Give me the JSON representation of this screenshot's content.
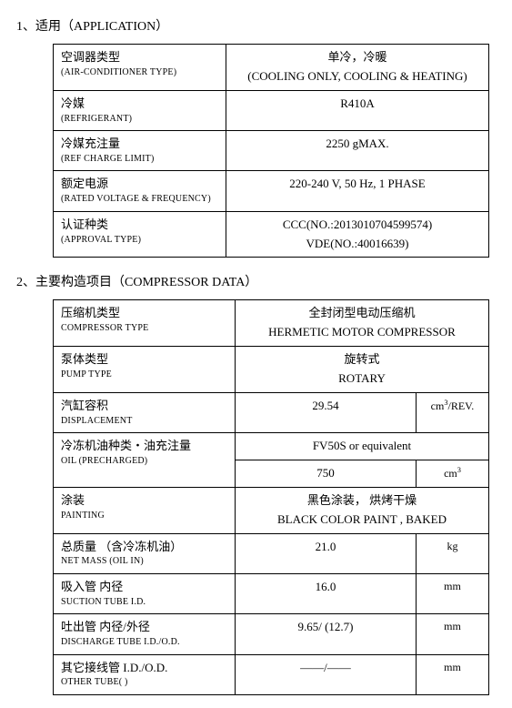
{
  "section1": {
    "title": "1、适用（APPLICATION）",
    "rows": [
      {
        "label_cn": "空调器类型",
        "label_en": "(AIR-CONDITIONER TYPE)",
        "val_cn": "单冷，冷暖",
        "val_en": "(COOLING ONLY,  COOLING & HEATING)"
      },
      {
        "label_cn": "冷媒",
        "label_en": "(REFRIGERANT)",
        "val": "R410A"
      },
      {
        "label_cn": "冷媒充注量",
        "label_en": "(REF CHARGE LIMIT)",
        "val": "2250     gMAX."
      },
      {
        "label_cn": "额定电源",
        "label_en": "(RATED VOLTAGE & FREQUENCY)",
        "val": "220-240 V,  50 Hz,  1 PHASE"
      },
      {
        "label_cn": "认证种类",
        "label_en": "(APPROVAL TYPE)",
        "val_l1": "CCC(NO.:2013010704599574)",
        "val_l2": "VDE(NO.:40016639)"
      }
    ]
  },
  "section2": {
    "title": "2、主要构造项目（COMPRESSOR DATA）",
    "rows": [
      {
        "label_cn": "压缩机类型",
        "label_en": "COMPRESSOR TYPE",
        "val_cn": "全封闭型电动压缩机",
        "val_en": "HERMETIC MOTOR COMPRESSOR",
        "colspan": 2
      },
      {
        "label_cn": "泵体类型",
        "label_en": "PUMP TYPE",
        "val_cn": "旋转式",
        "val_en": "ROTARY",
        "colspan": 2
      },
      {
        "label_cn": "汽缸容积",
        "label_en": "DISPLACEMENT",
        "val": "29.54",
        "unit": "cm³/REV."
      },
      {
        "label_cn": "冷冻机油种类・油充注量",
        "label_en": "OIL        (PRECHARGED)",
        "top_val": "FV50S or equivalent",
        "val": "750",
        "unit": "cm³",
        "split": true
      },
      {
        "label_cn": "涂装",
        "label_en": "PAINTING",
        "val_cn": "黑色涂装，   烘烤干燥",
        "val_en": "BLACK COLOR PAINT ,   BAKED",
        "colspan": 2
      },
      {
        "label_cn": "总质量 （含冷冻机油）",
        "label_en": "NET MASS  (OIL IN)",
        "val": "21.0",
        "unit": "kg"
      },
      {
        "label_cn": "吸入管 内径",
        "label_en": "SUCTION TUBE I.D.",
        "val": "16.0",
        "unit": "mm"
      },
      {
        "label_cn": "吐出管 内径/外径",
        "label_en": "DISCHARGE TUBE I.D./O.D.",
        "val": "9.65/ (12.7)",
        "unit": "mm"
      },
      {
        "label_cn": "其它接线管 I.D./O.D.",
        "label_en": "OTHER TUBE(   )",
        "val": "——/——",
        "unit": "mm"
      }
    ]
  },
  "col_widths": {
    "t1_label": 190,
    "t2_label": 200,
    "t2_unit": 70
  }
}
